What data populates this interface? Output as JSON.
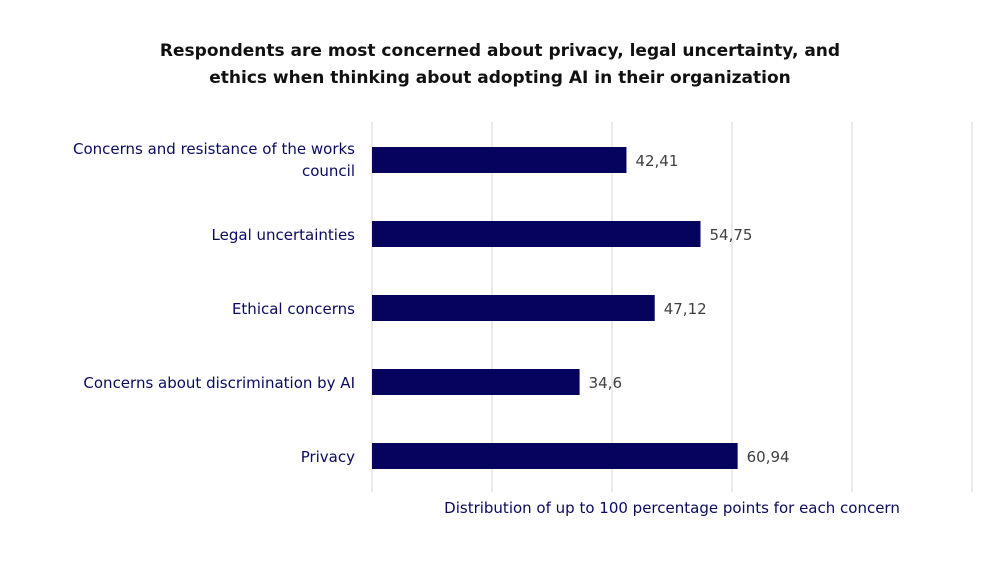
{
  "chart_data": {
    "type": "bar",
    "orientation": "horizontal",
    "title": "Respondents are most concerned about privacy, legal uncertainty, and ethics when thinking about adopting AI in their organization",
    "title_lines": [
      "Respondents are most concerned about privacy, legal uncertainty, and",
      "ethics when thinking about adopting AI in their organization"
    ],
    "categories": [
      [
        "Concerns and resistance of the works",
        "council"
      ],
      [
        "Legal uncertainties"
      ],
      [
        "Ethical concerns"
      ],
      [
        "Concerns about discrimination by AI"
      ],
      [
        "Privacy"
      ]
    ],
    "values": [
      42.41,
      54.75,
      47.12,
      34.6,
      60.94
    ],
    "data_labels": [
      "42,41",
      "54,75",
      "47,12",
      "34,6",
      "60,94"
    ],
    "xlabel": "Distribution of up to 100 percentage points for each concern",
    "ylabel": "",
    "xlim": [
      0,
      100
    ],
    "x_grid_step": 20,
    "grid": true,
    "tick_labels_shown": false,
    "bar_color": "#06035f",
    "gridline_color": "#e3e3e3"
  }
}
